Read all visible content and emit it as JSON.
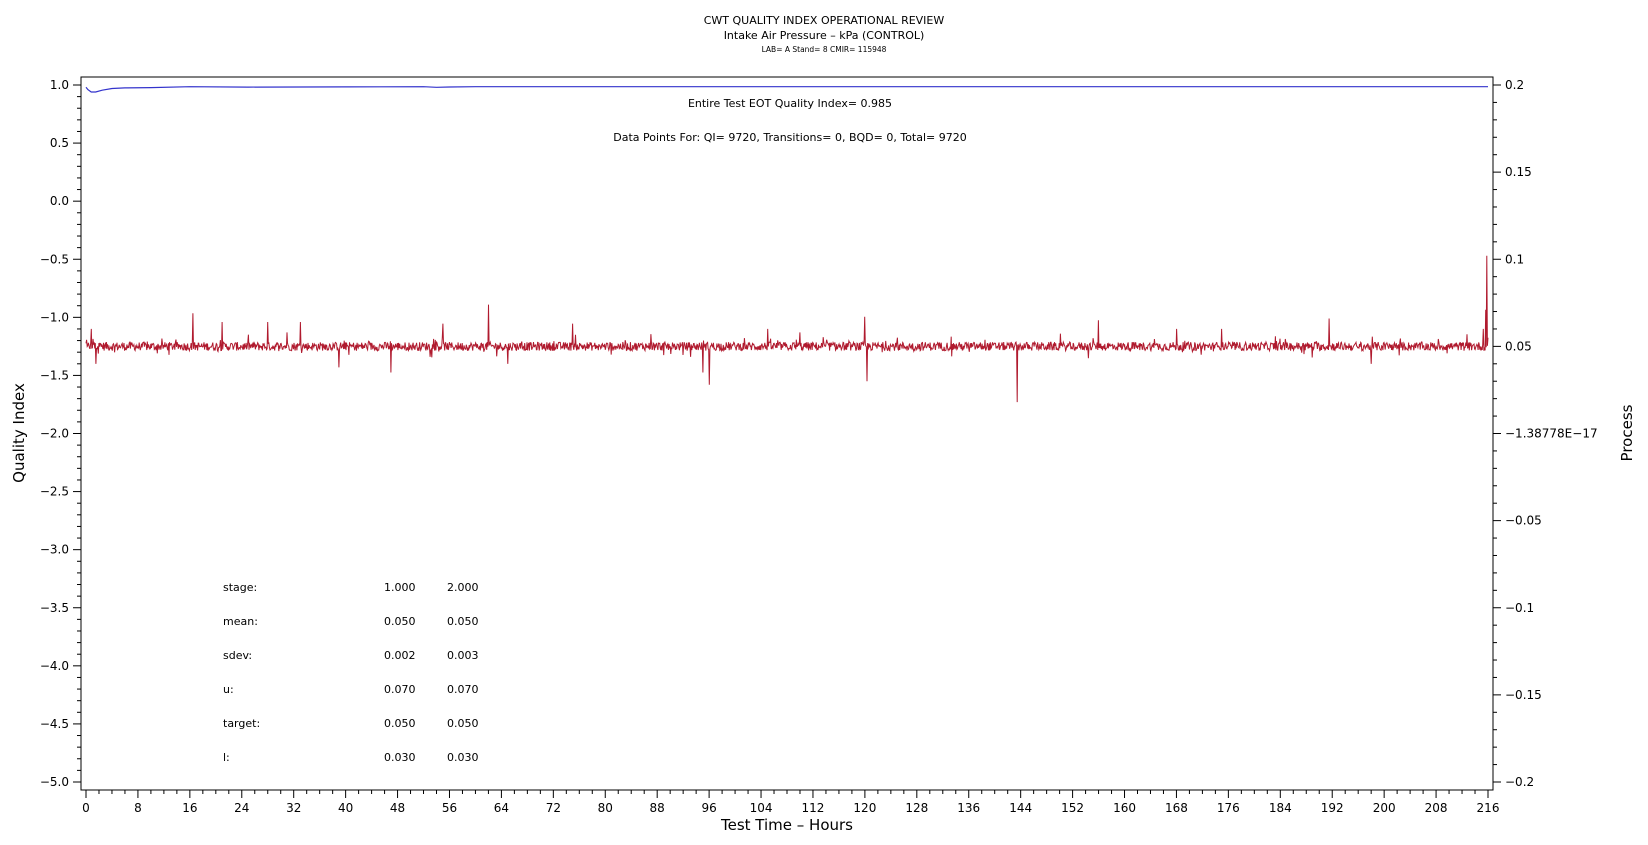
{
  "chart_data": {
    "type": "line",
    "title": "CWT QUALITY INDEX OPERATIONAL REVIEW",
    "subtitle": "Intake Air Pressure – kPa (CONTROL)",
    "subtitle2": "LAB= A Stand= 8 CMIR= 115948",
    "xlabel": "Test Time – Hours",
    "ylabel_left": "Quality Index",
    "ylabel_right": "Process",
    "xlim": [
      0,
      216
    ],
    "ylim_left": [
      -5.0,
      1.0
    ],
    "ylim_right": [
      -0.2,
      0.2
    ],
    "x_ticks": [
      "0",
      "8",
      "16",
      "24",
      "32",
      "40",
      "48",
      "56",
      "64",
      "72",
      "80",
      "88",
      "96",
      "104",
      "112",
      "120",
      "128",
      "136",
      "144",
      "152",
      "160",
      "168",
      "176",
      "184",
      "192",
      "200",
      "208",
      "216"
    ],
    "y_left_ticks": [
      "1.0",
      "0.5",
      "0.0",
      "−0.5",
      "−1.0",
      "−1.5",
      "−2.0",
      "−2.5",
      "−3.0",
      "−3.5",
      "−4.0",
      "−4.5",
      "−5.0"
    ],
    "y_right_ticks": [
      "0.2",
      "0.15",
      "0.1",
      "0.05",
      "−1.38778E−17",
      "−0.05",
      "−0.1",
      "−0.15",
      "−0.2"
    ],
    "annotations": {
      "eot_qi": "Entire Test EOT Quality Index=   0.985",
      "data_points": "Data Points For: QI=  9720, Transitions=     0, BQD=     0, Total=  9720"
    },
    "stats_table": {
      "rows": [
        {
          "label": "stage:",
          "v1": "1.000",
          "v2": "2.000"
        },
        {
          "label": "mean:",
          "v1": "0.050",
          "v2": "0.050"
        },
        {
          "label": "sdev:",
          "v1": "0.002",
          "v2": "0.003"
        },
        {
          "label": "u:",
          "v1": "0.070",
          "v2": "0.070"
        },
        {
          "label": "target:",
          "v1": "0.050",
          "v2": "0.050"
        },
        {
          "label": "l:",
          "v1": "0.030",
          "v2": "0.030"
        }
      ]
    },
    "series": [
      {
        "name": "Quality Index",
        "axis": "left",
        "color": "#3333cc",
        "points": [
          [
            0,
            0.98
          ],
          [
            0.3,
            0.96
          ],
          [
            0.8,
            0.94
          ],
          [
            1.5,
            0.94
          ],
          [
            2.5,
            0.955
          ],
          [
            4,
            0.97
          ],
          [
            6,
            0.975
          ],
          [
            10,
            0.978
          ],
          [
            16,
            0.985
          ],
          [
            25,
            0.982
          ],
          [
            40,
            0.984
          ],
          [
            52,
            0.985
          ],
          [
            54,
            0.98
          ],
          [
            56,
            0.983
          ],
          [
            60,
            0.985
          ],
          [
            100,
            0.985
          ],
          [
            160,
            0.985
          ],
          [
            216,
            0.985
          ]
        ]
      },
      {
        "name": "Process",
        "axis": "right",
        "color": "#b01a2e",
        "base": 0.05,
        "noise": 0.0025,
        "samples": 2400,
        "spikes": [
          [
            0.8,
            0.06
          ],
          [
            1.5,
            0.04
          ],
          [
            16.5,
            0.069
          ],
          [
            21,
            0.064
          ],
          [
            28,
            0.064
          ],
          [
            31,
            0.058
          ],
          [
            33,
            0.064
          ],
          [
            39,
            0.038
          ],
          [
            47,
            0.035
          ],
          [
            55,
            0.063
          ],
          [
            62,
            0.074
          ],
          [
            65,
            0.04
          ],
          [
            75,
            0.063
          ],
          [
            87,
            0.057
          ],
          [
            89,
            0.045
          ],
          [
            95,
            0.035
          ],
          [
            96,
            0.028
          ],
          [
            105,
            0.06
          ],
          [
            110,
            0.058
          ],
          [
            120,
            0.067
          ],
          [
            120.3,
            0.03
          ],
          [
            125,
            0.055
          ],
          [
            143.5,
            0.018
          ],
          [
            146,
            0.052
          ],
          [
            156,
            0.065
          ],
          [
            168,
            0.06
          ],
          [
            175,
            0.06
          ],
          [
            191.5,
            0.066
          ],
          [
            198,
            0.04
          ],
          [
            215.3,
            0.06
          ],
          [
            215.6,
            0.071
          ],
          [
            215.8,
            0.102
          ],
          [
            216,
            0.055
          ]
        ]
      }
    ]
  }
}
